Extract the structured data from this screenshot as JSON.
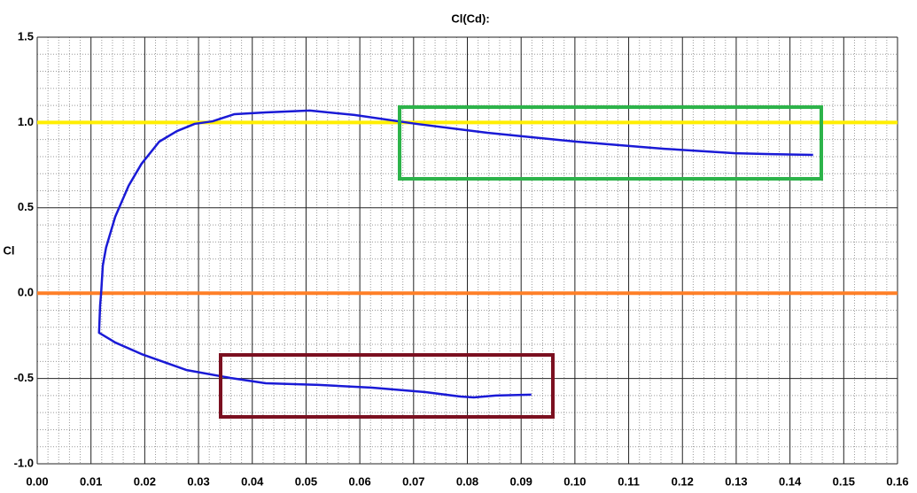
{
  "chart_data": {
    "type": "line",
    "title": "Cl(Cd):",
    "y_label": "Cl",
    "xlim": [
      0,
      0.16
    ],
    "ylim": [
      -1.0,
      1.5
    ],
    "xticks": [
      {
        "value": 0,
        "label": "0.00"
      },
      0.01,
      0.02,
      0.03,
      0.04,
      0.05,
      0.06,
      0.07,
      0.08,
      0.09,
      {
        "value": 0.1,
        "label": "0.10"
      },
      0.11,
      0.12,
      0.13,
      0.14,
      0.15,
      0.16
    ],
    "yticks": [
      {
        "value": -1,
        "label": "-1.0"
      },
      -0.5,
      {
        "value": 0,
        "label": "0.0"
      },
      0.5,
      {
        "value": 1,
        "label": "1.0"
      },
      1.5
    ],
    "grid": true,
    "minor_divisions": 5,
    "reference_lines": [
      {
        "y": 1,
        "color": "#ffee00"
      },
      {
        "y": 0,
        "color": "#ff7f27"
      }
    ],
    "series": [
      {
        "color": "#1a1ad6",
        "x": [
          0.0919,
          0.0853,
          0.0812,
          0.0787,
          0.0722,
          0.0623,
          0.0524,
          0.0425,
          0.0359,
          0.0277,
          0.0194,
          0.0145,
          0.0115,
          0.0117,
          0.0119,
          0.0122,
          0.0128,
          0.0145,
          0.017,
          0.0194,
          0.0227,
          0.026,
          0.0293,
          0.0326,
          0.0367,
          0.0425,
          0.0507,
          0.059,
          0.0705,
          0.0837,
          0.1002,
          0.1166,
          0.1298,
          0.1364,
          0.1443
        ],
        "values": [
          -0.595,
          -0.6,
          -0.611,
          -0.606,
          -0.58,
          -0.554,
          -0.538,
          -0.528,
          -0.497,
          -0.45,
          -0.357,
          -0.289,
          -0.232,
          -0.072,
          0.006,
          0.162,
          0.266,
          0.447,
          0.629,
          0.758,
          0.888,
          0.95,
          0.992,
          1.007,
          1.049,
          1.059,
          1.07,
          1.044,
          0.992,
          0.94,
          0.888,
          0.846,
          0.82,
          0.815,
          0.81
        ]
      }
    ]
  }
}
